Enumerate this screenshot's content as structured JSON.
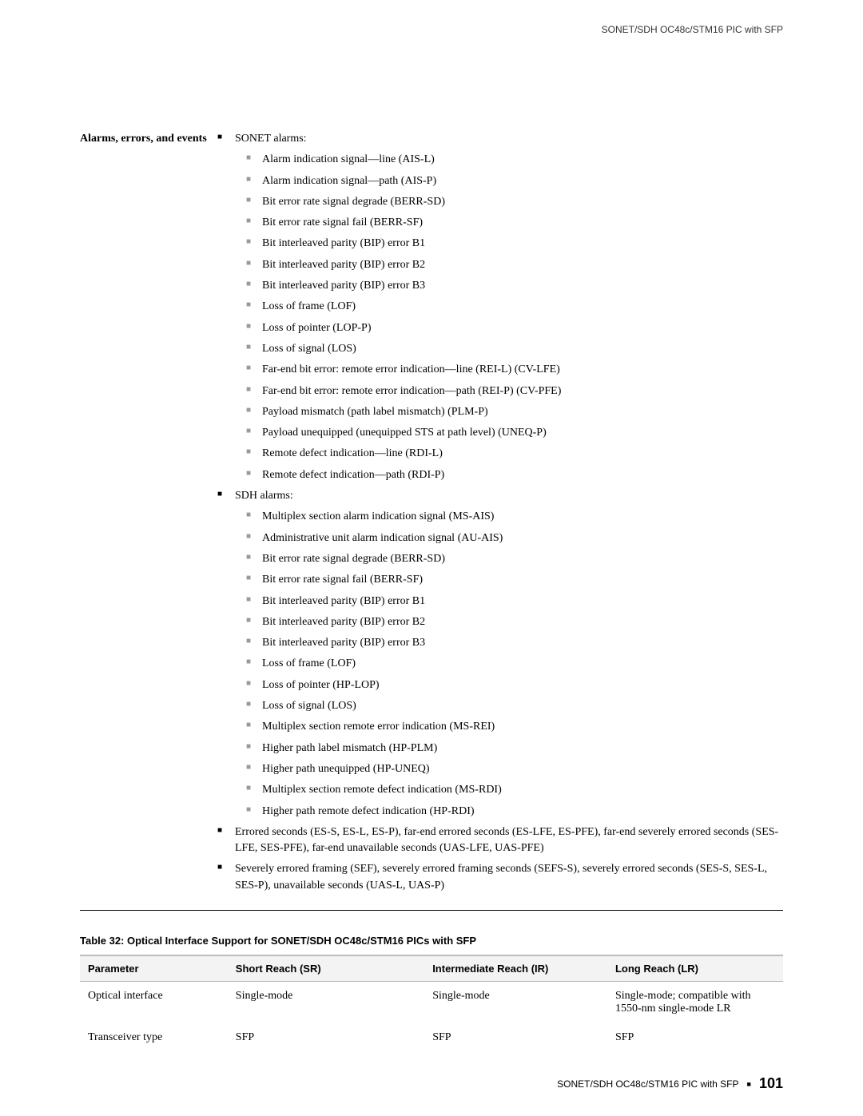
{
  "header": {
    "section_title": "SONET/SDH OC48c/STM16 PIC with SFP"
  },
  "spec": {
    "label": "Alarms, errors, and events",
    "groups": [
      {
        "title": "SONET alarms:",
        "items": [
          "Alarm indication signal—line (AIS-L)",
          "Alarm indication signal—path (AIS-P)",
          "Bit error rate signal degrade (BERR-SD)",
          "Bit error rate signal fail (BERR-SF)",
          "Bit interleaved parity (BIP) error B1",
          "Bit interleaved parity (BIP) error B2",
          "Bit interleaved parity (BIP) error B3",
          "Loss of frame (LOF)",
          "Loss of pointer (LOP-P)",
          "Loss of signal (LOS)",
          "Far-end bit error: remote error indication—line (REI-L) (CV-LFE)",
          "Far-end bit error: remote error indication—path (REI-P) (CV-PFE)",
          "Payload mismatch (path label mismatch) (PLM-P)",
          "Payload unequipped (unequipped STS at path level) (UNEQ-P)",
          "Remote defect indication—line (RDI-L)",
          "Remote defect indication—path (RDI-P)"
        ]
      },
      {
        "title": "SDH alarms:",
        "items": [
          "Multiplex section alarm indication signal (MS-AIS)",
          "Administrative unit alarm indication signal (AU-AIS)",
          "Bit error rate signal degrade (BERR-SD)",
          "Bit error rate signal fail (BERR-SF)",
          "Bit interleaved parity (BIP) error B1",
          "Bit interleaved parity (BIP) error B2",
          "Bit interleaved parity (BIP) error B3",
          "Loss of frame (LOF)",
          "Loss of pointer (HP-LOP)",
          "Loss of signal (LOS)",
          "Multiplex section remote error indication (MS-REI)",
          "Higher path label mismatch (HP-PLM)",
          "Higher path unequipped (HP-UNEQ)",
          "Multiplex section remote defect indication (MS-RDI)",
          "Higher path remote defect indication (HP-RDI)"
        ]
      },
      {
        "title": "Errored seconds (ES-S, ES-L, ES-P), far-end errored seconds (ES-LFE, ES-PFE), far-end severely errored seconds (SES-LFE, SES-PFE), far-end unavailable seconds (UAS-LFE, UAS-PFE)",
        "items": []
      },
      {
        "title": "Severely errored framing (SEF), severely errored framing seconds (SEFS-S), severely errored seconds (SES-S, SES-L, SES-P), unavailable seconds (UAS-L, UAS-P)",
        "items": []
      }
    ]
  },
  "table": {
    "caption": "Table 32: Optical Interface Support for SONET/SDH OC48c/STM16 PICs with SFP",
    "columns": [
      "Parameter",
      "Short Reach (SR)",
      "Intermediate Reach (IR)",
      "Long Reach (LR)"
    ],
    "rows": [
      [
        "Optical interface",
        "Single-mode",
        "Single-mode",
        "Single-mode; compatible with 1550-nm single-mode LR"
      ],
      [
        "Transceiver type",
        "SFP",
        "SFP",
        "SFP"
      ]
    ],
    "col_widths": [
      "21%",
      "28%",
      "26%",
      "25%"
    ]
  },
  "footer": {
    "text": "SONET/SDH OC48c/STM16 PIC with SFP",
    "page": "101"
  },
  "style": {
    "text_color": "#000000",
    "sub_bullet_color": "#999999",
    "header_bg": "#f3f3f3",
    "border_color": "#bbbbbb",
    "body_font_size": 14,
    "caption_font_size": 13,
    "header_font_size": 12
  }
}
